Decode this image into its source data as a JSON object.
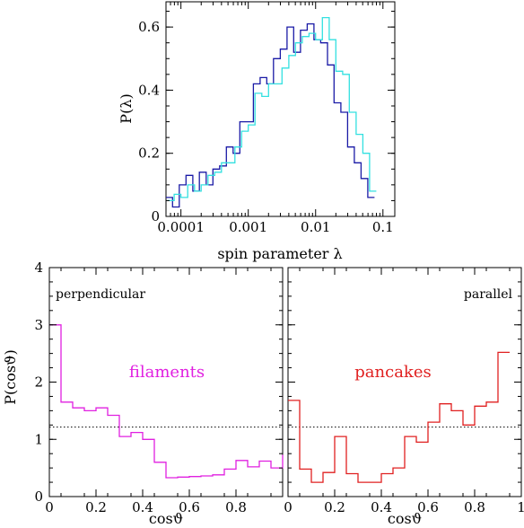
{
  "chart_data": [
    {
      "type": "histogram",
      "xlabel": "spin parameter λ",
      "ylabel": "P(λ)",
      "x_scale": "log",
      "xlim": [
        6e-05,
        0.15
      ],
      "ylim": [
        0,
        0.68
      ],
      "x_ticks": [
        {
          "value": 0.0001,
          "label": "0.0001"
        },
        {
          "value": 0.001,
          "label": "0.001"
        },
        {
          "value": 0.01,
          "label": "0.01"
        },
        {
          "value": 0.1,
          "label": "0.1"
        }
      ],
      "y_ticks": [
        {
          "value": 0,
          "label": "0"
        },
        {
          "value": 0.2,
          "label": "0.2"
        },
        {
          "value": 0.4,
          "label": "0.4"
        },
        {
          "value": 0.6,
          "label": "0.6"
        }
      ],
      "series": [
        {
          "color": "#1a1aa6",
          "bin_edges": [
            6e-05,
            7.5e-05,
            9.44e-05,
            0.000119,
            0.00015,
            0.000188,
            0.000237,
            0.000299,
            0.000376,
            0.000473,
            0.000596,
            0.00075,
            0.000944,
            0.00119,
            0.0015,
            0.00188,
            0.00237,
            0.00299,
            0.00376,
            0.00473,
            0.00596,
            0.0075,
            0.00944,
            0.0119,
            0.015,
            0.0188,
            0.0237,
            0.0299,
            0.0376,
            0.0473,
            0.0596,
            0.075
          ],
          "values": [
            0.06,
            0.03,
            0.1,
            0.13,
            0.08,
            0.14,
            0.1,
            0.15,
            0.16,
            0.22,
            0.2,
            0.3,
            0.3,
            0.42,
            0.44,
            0.42,
            0.5,
            0.53,
            0.6,
            0.52,
            0.59,
            0.61,
            0.56,
            0.55,
            0.48,
            0.36,
            0.33,
            0.22,
            0.17,
            0.12,
            0.06
          ]
        },
        {
          "color": "#33e0e0",
          "bin_edges": [
            6.3e-05,
            7.94e-05,
            0.0001,
            0.000126,
            0.000159,
            0.0002,
            0.000252,
            0.000317,
            0.0004,
            0.000503,
            0.000634,
            0.000798,
            0.001,
            0.00126,
            0.00159,
            0.002,
            0.00252,
            0.00317,
            0.004,
            0.00503,
            0.00634,
            0.00798,
            0.01,
            0.0126,
            0.0159,
            0.02,
            0.0252,
            0.0317,
            0.04,
            0.0503,
            0.0634,
            0.0798
          ],
          "values": [
            0.05,
            0.07,
            0.06,
            0.1,
            0.08,
            0.1,
            0.13,
            0.14,
            0.17,
            0.17,
            0.22,
            0.27,
            0.29,
            0.39,
            0.38,
            0.42,
            0.42,
            0.47,
            0.51,
            0.55,
            0.57,
            0.58,
            0.56,
            0.63,
            0.56,
            0.46,
            0.45,
            0.33,
            0.26,
            0.2,
            0.08
          ]
        }
      ]
    },
    {
      "type": "histogram",
      "xlabel": "cosϑ",
      "ylabel": "P(cosϑ)",
      "xlim": [
        0,
        1
      ],
      "ylim": [
        0,
        4
      ],
      "reference_line": 1,
      "x_ticks": [
        {
          "value": 0,
          "label": "0"
        },
        {
          "value": 0.2,
          "label": "0.2"
        },
        {
          "value": 0.4,
          "label": "0.4"
        },
        {
          "value": 0.6,
          "label": "0.6"
        },
        {
          "value": 0.8,
          "label": "0.8"
        }
      ],
      "y_ticks": [
        {
          "value": 0,
          "label": "0"
        },
        {
          "value": 1,
          "label": "1"
        },
        {
          "value": 2,
          "label": "2"
        },
        {
          "value": 3,
          "label": "3"
        },
        {
          "value": 4,
          "label": "4"
        }
      ],
      "annotations": [
        "perpendicular",
        "filaments"
      ],
      "series": [
        {
          "name": "filaments",
          "color": "#e020e0",
          "bin_width": 0.05,
          "values": [
            3.0,
            1.65,
            1.55,
            1.5,
            1.55,
            1.42,
            1.05,
            1.12,
            1.0,
            0.6,
            0.33,
            0.34,
            0.35,
            0.36,
            0.38,
            0.48,
            0.63,
            0.52,
            0.62,
            0.5,
            0.73
          ]
        }
      ]
    },
    {
      "type": "histogram",
      "xlabel": "cosϑ",
      "xlim": [
        0,
        1
      ],
      "ylim": [
        0,
        4
      ],
      "reference_line": 1,
      "x_ticks": [
        {
          "value": 0,
          "label": "0"
        },
        {
          "value": 0.2,
          "label": "0.2"
        },
        {
          "value": 0.4,
          "label": "0.4"
        },
        {
          "value": 0.6,
          "label": "0.6"
        },
        {
          "value": 0.8,
          "label": "0.8"
        },
        {
          "value": 1,
          "label": "1"
        }
      ],
      "annotations": [
        "parallel",
        "pancakes"
      ],
      "series": [
        {
          "name": "pancakes",
          "color": "#e02020",
          "bin_width": 0.05,
          "values": [
            1.68,
            0.48,
            0.25,
            0.42,
            1.05,
            0.4,
            0.25,
            0.25,
            0.4,
            0.5,
            1.05,
            0.95,
            1.3,
            1.62,
            1.5,
            1.25,
            1.58,
            1.65,
            2.52
          ]
        }
      ]
    }
  ]
}
